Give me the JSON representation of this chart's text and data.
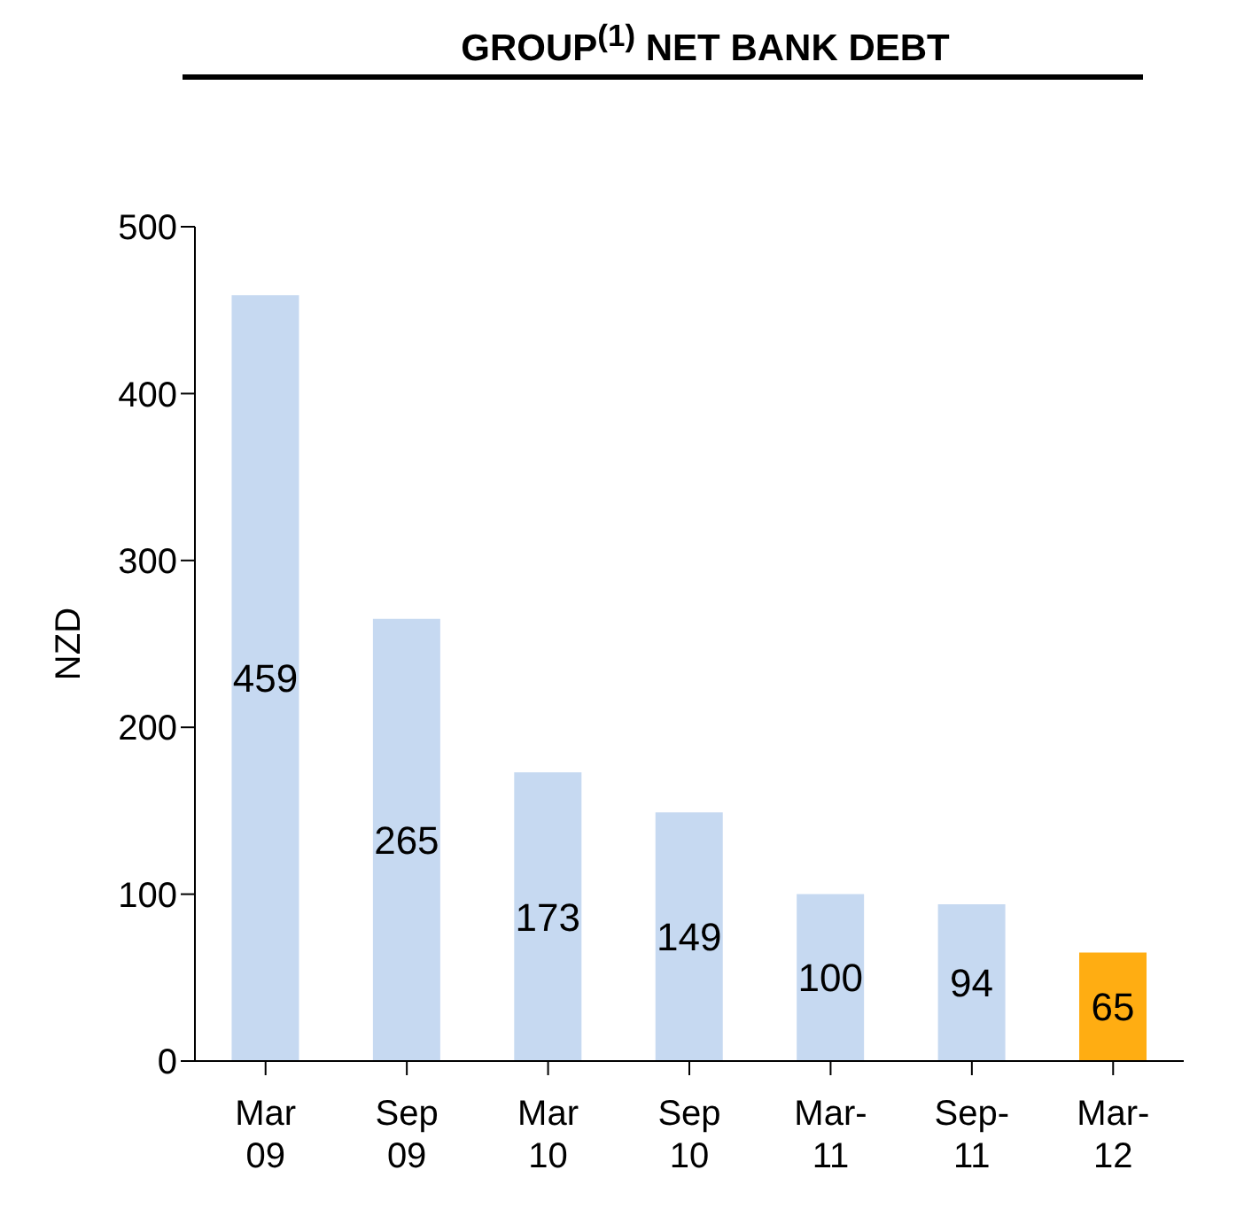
{
  "chart_data": {
    "type": "bar",
    "title": "GROUP$^{(1)}$ NET BANK DEBT",
    "ylabel": "NZD",
    "categories": [
      "Mar 09",
      "Sep 09",
      "Mar 10",
      "Sep 10",
      "Mar-11",
      "Sep-11",
      "Mar-12"
    ],
    "values": [
      459,
      265,
      173,
      149,
      100,
      94,
      65
    ],
    "colors": [
      "#c6d9f1",
      "#c6d9f1",
      "#c6d9f1",
      "#c6d9f1",
      "#c6d9f1",
      "#c6d9f1",
      "#ffad12"
    ],
    "ylim": [
      0,
      500
    ],
    "yticks": [
      0,
      100,
      200,
      300,
      400,
      500
    ],
    "grid": false,
    "data_labels": true
  }
}
